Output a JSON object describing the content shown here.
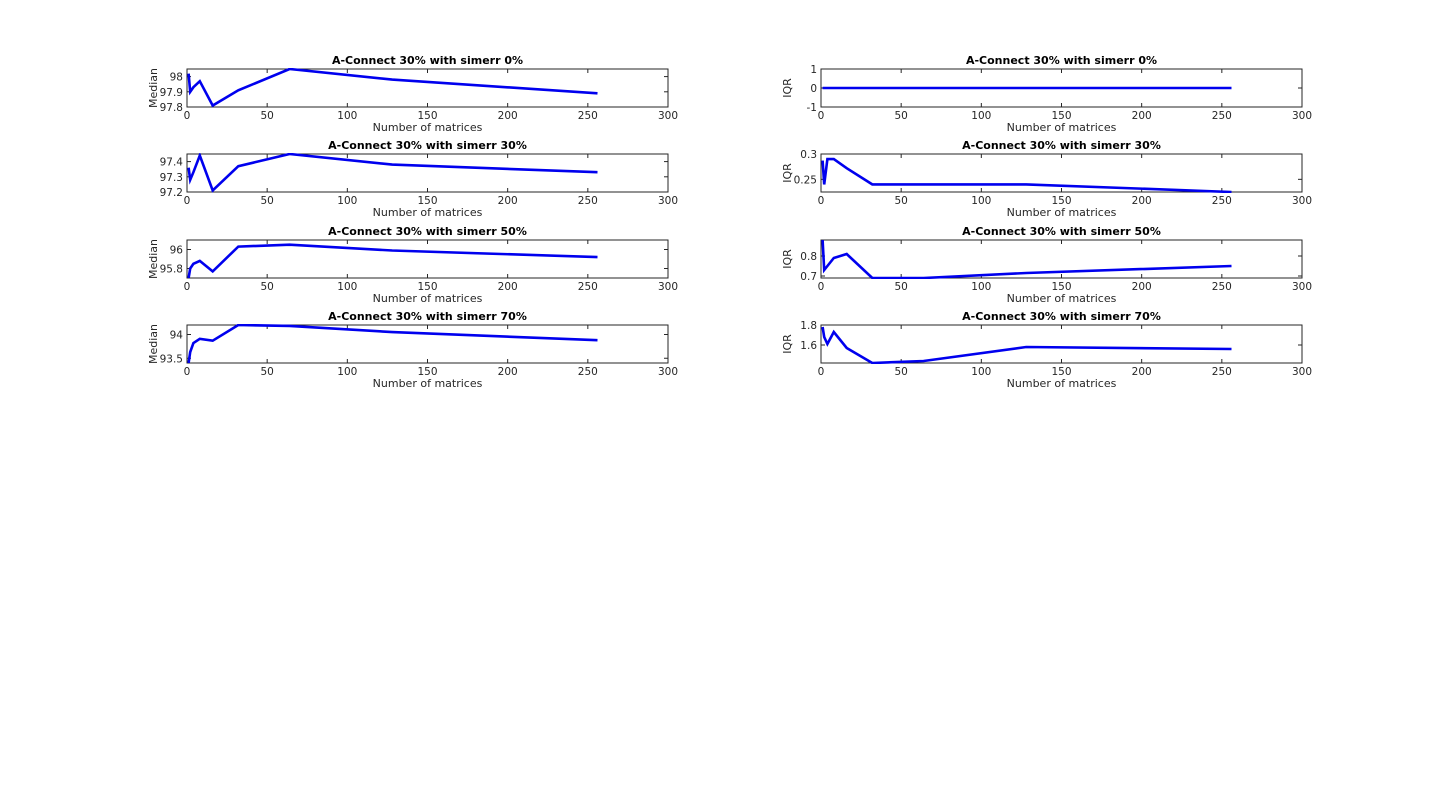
{
  "chart_data": [
    {
      "type": "line",
      "title": "A-Connect 30% with simerr 0%",
      "xlabel": "Number of matrices",
      "ylabel": "Median",
      "xlim": [
        0,
        300
      ],
      "ylim": [
        97.8,
        98.05
      ],
      "xticks": [
        "0",
        "50",
        "100",
        "150",
        "200",
        "250",
        "300"
      ],
      "yticks": [
        "97.8",
        "97.9",
        "98"
      ],
      "series": [
        {
          "color": "#0000ee",
          "x": [
            1,
            2,
            4,
            8,
            16,
            32,
            64,
            128,
            256
          ],
          "y": [
            98.02,
            97.9,
            97.93,
            97.97,
            97.81,
            97.91,
            98.05,
            97.98,
            97.89
          ]
        }
      ]
    },
    {
      "type": "line",
      "title": "A-Connect 30% with simerr 0%",
      "xlabel": "Number of matrices",
      "ylabel": "IQR",
      "xlim": [
        0,
        300
      ],
      "ylim": [
        -1,
        1
      ],
      "xticks": [
        "0",
        "50",
        "100",
        "150",
        "200",
        "250",
        "300"
      ],
      "yticks": [
        "-1",
        "0",
        "1"
      ],
      "series": [
        {
          "color": "#0000ee",
          "x": [
            1,
            2,
            4,
            8,
            16,
            32,
            64,
            128,
            256
          ],
          "y": [
            0,
            0,
            0,
            0,
            0,
            0,
            0,
            0,
            0
          ]
        }
      ]
    },
    {
      "type": "line",
      "title": "A-Connect 30% with simerr 30%",
      "xlabel": "Number of matrices",
      "ylabel": "",
      "xlim": [
        0,
        300
      ],
      "ylim": [
        97.2,
        97.45
      ],
      "xticks": [
        "0",
        "50",
        "100",
        "150",
        "200",
        "250",
        "300"
      ],
      "yticks": [
        "97.2",
        "97.3",
        "97.4"
      ],
      "series": [
        {
          "color": "#0000ee",
          "x": [
            1,
            2,
            4,
            8,
            16,
            32,
            64,
            128,
            256
          ],
          "y": [
            97.36,
            97.28,
            97.33,
            97.44,
            97.21,
            97.37,
            97.45,
            97.38,
            97.33
          ]
        }
      ]
    },
    {
      "type": "line",
      "title": "A-Connect 30% with simerr 30%",
      "xlabel": "Number of matrices",
      "ylabel": "IQR",
      "xlim": [
        0,
        300
      ],
      "ylim": [
        0.225,
        0.3
      ],
      "xticks": [
        "0",
        "50",
        "100",
        "150",
        "200",
        "250",
        "300"
      ],
      "yticks": [
        "0.25",
        "0.3"
      ],
      "series": [
        {
          "color": "#0000ee",
          "x": [
            1,
            2,
            4,
            8,
            16,
            32,
            64,
            128,
            256
          ],
          "y": [
            0.287,
            0.24,
            0.29,
            0.29,
            0.272,
            0.24,
            0.24,
            0.24,
            0.225
          ]
        }
      ]
    },
    {
      "type": "line",
      "title": "A-Connect 30% with simerr 50%",
      "xlabel": "Number of matrices",
      "ylabel": "Median",
      "xlim": [
        0,
        300
      ],
      "ylim": [
        95.7,
        96.1
      ],
      "xticks": [
        "0",
        "50",
        "100",
        "150",
        "200",
        "250",
        "300"
      ],
      "yticks": [
        "95.8",
        "96"
      ],
      "series": [
        {
          "color": "#0000ee",
          "x": [
            1,
            2,
            4,
            8,
            16,
            32,
            64,
            128,
            256
          ],
          "y": [
            95.7,
            95.8,
            95.85,
            95.88,
            95.77,
            96.03,
            96.05,
            95.99,
            95.92
          ]
        }
      ]
    },
    {
      "type": "line",
      "title": "A-Connect 30% with simerr 50%",
      "xlabel": "Number of matrices",
      "ylabel": "IQR",
      "xlim": [
        0,
        300
      ],
      "ylim": [
        0.69,
        0.88
      ],
      "xticks": [
        "0",
        "50",
        "100",
        "150",
        "200",
        "250",
        "300"
      ],
      "yticks": [
        "0.7",
        "0.8"
      ],
      "series": [
        {
          "color": "#0000ee",
          "x": [
            1,
            2,
            4,
            8,
            16,
            32,
            64,
            128,
            256
          ],
          "y": [
            0.88,
            0.73,
            0.75,
            0.79,
            0.81,
            0.69,
            0.69,
            0.715,
            0.75
          ]
        }
      ]
    },
    {
      "type": "line",
      "title": "A-Connect 30% with simerr 70%",
      "xlabel": "Number of matrices",
      "ylabel": "Median",
      "xlim": [
        0,
        300
      ],
      "ylim": [
        93.4,
        94.2
      ],
      "xticks": [
        "0",
        "50",
        "100",
        "150",
        "200",
        "250",
        "300"
      ],
      "yticks": [
        "93.5",
        "94"
      ],
      "series": [
        {
          "color": "#0000ee",
          "x": [
            1,
            2,
            4,
            8,
            16,
            32,
            64,
            128,
            256
          ],
          "y": [
            93.4,
            93.63,
            93.82,
            93.91,
            93.87,
            94.2,
            94.18,
            94.05,
            93.88
          ]
        }
      ]
    },
    {
      "type": "line",
      "title": "A-Connect 30% with simerr 70%",
      "xlabel": "Number of matrices",
      "ylabel": "IQR",
      "xlim": [
        0,
        300
      ],
      "ylim": [
        1.42,
        1.8
      ],
      "xticks": [
        "0",
        "50",
        "100",
        "150",
        "200",
        "250",
        "300"
      ],
      "yticks": [
        "1.6",
        "1.8"
      ],
      "series": [
        {
          "color": "#0000ee",
          "x": [
            1,
            2,
            4,
            8,
            16,
            32,
            64,
            128,
            256
          ],
          "y": [
            1.78,
            1.68,
            1.61,
            1.73,
            1.57,
            1.42,
            1.44,
            1.58,
            1.56
          ]
        }
      ]
    }
  ]
}
